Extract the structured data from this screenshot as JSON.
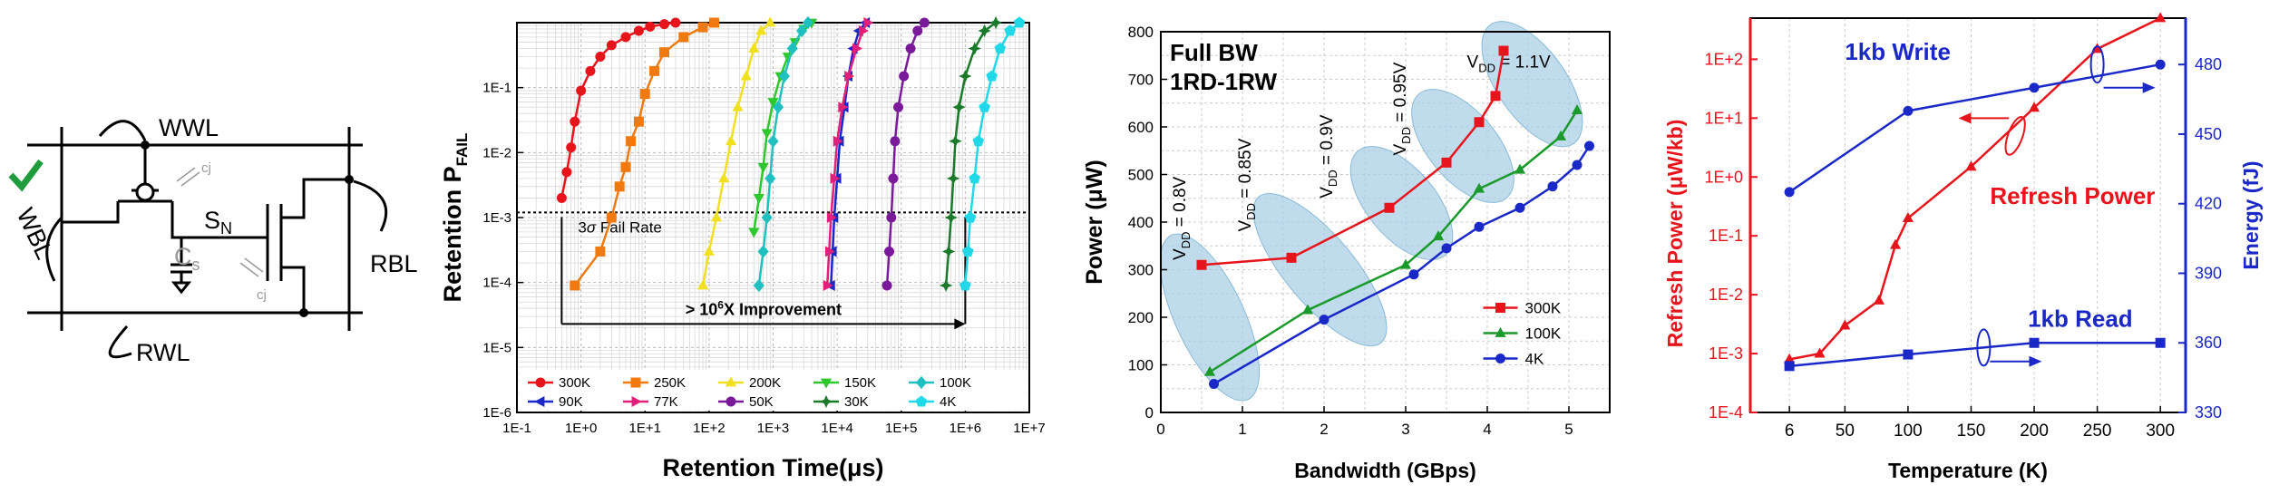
{
  "circuit": {
    "labels": {
      "wwl": "WWL",
      "wbl": "WBL",
      "rwl": "RWL",
      "rbl": "RBL",
      "sn": "S",
      "sn_sub": "N",
      "cs": "C",
      "cs_sub": "s",
      "cj1": "cj",
      "cj2": "cj"
    }
  },
  "colors": {
    "red": "#e8141c",
    "blue": "#1a28c8",
    "check": "#1f9c3c",
    "ellipse": "#a9cfe5"
  },
  "chart_data": [
    {
      "type": "line",
      "ylabel": "Retention P",
      "ylabel_sub": "FAIL",
      "xlabel": "Retention Time(μs)",
      "x_scale": "log",
      "y_scale": "log",
      "xlim": [
        0.1,
        10000000
      ],
      "ylim": [
        1e-06,
        1
      ],
      "x_ticks": [
        "1E-1",
        "1E+0",
        "1E+1",
        "1E+2",
        "1E+3",
        "1E+4",
        "1E+5",
        "1E+6",
        "1E+7"
      ],
      "y_ticks": [
        "1E-6",
        "1E-5",
        "1E-4",
        "1E-3",
        "1E-2",
        "1E-1"
      ],
      "threshold": {
        "y": 0.0012,
        "label_pre": "3",
        "label_sigma": "σ",
        "label_post": " Fail Rate"
      },
      "improvement": {
        "label_pre": "> 10",
        "label_sup": "6",
        "label_post": "X Improvement",
        "x_from": 0.5,
        "x_to": 1000000,
        "y": 2.3e-05
      },
      "series": [
        {
          "name": "300K",
          "color": "#e8141c",
          "marker": "circle",
          "x": [
            0.5,
            0.6,
            0.7,
            0.8,
            1.0,
            1.4,
            2,
            3,
            5,
            8,
            12,
            20,
            30
          ],
          "y": [
            0.002,
            0.005,
            0.012,
            0.03,
            0.09,
            0.18,
            0.3,
            0.45,
            0.6,
            0.75,
            0.87,
            0.95,
            1
          ]
        },
        {
          "name": "250K",
          "color": "#f07a10",
          "marker": "square",
          "x": [
            0.8,
            2,
            3,
            4,
            5,
            6,
            8,
            10,
            14,
            20,
            40,
            80,
            120
          ],
          "y": [
            9e-05,
            0.0003,
            0.001,
            0.003,
            0.006,
            0.015,
            0.03,
            0.08,
            0.18,
            0.35,
            0.6,
            0.85,
            1
          ]
        },
        {
          "name": "200K",
          "color": "#f0e020",
          "marker": "triangle-up",
          "x": [
            80,
            100,
            130,
            170,
            220,
            280,
            380,
            500,
            650,
            900
          ],
          "y": [
            9e-05,
            0.0003,
            0.001,
            0.004,
            0.015,
            0.05,
            0.15,
            0.4,
            0.75,
            1
          ]
        },
        {
          "name": "150K",
          "color": "#2ec82e",
          "marker": "triangle-down",
          "x": [
            500,
            600,
            700,
            800,
            1000,
            1300,
            1700,
            2200,
            3000,
            4000
          ],
          "y": [
            0.0006,
            0.002,
            0.006,
            0.02,
            0.06,
            0.15,
            0.3,
            0.5,
            0.8,
            1
          ]
        },
        {
          "name": "100K",
          "color": "#20c0c0",
          "marker": "diamond",
          "x": [
            600,
            700,
            800,
            900,
            1000,
            1200,
            1500,
            2000,
            2800,
            3500
          ],
          "y": [
            9e-05,
            0.0003,
            0.001,
            0.004,
            0.015,
            0.05,
            0.15,
            0.4,
            0.75,
            1
          ]
        },
        {
          "name": "90K",
          "color": "#1a28c8",
          "marker": "triangle-left",
          "x": [
            8000,
            8500,
            9000,
            10000,
            11000,
            13000,
            15000,
            18000,
            22000,
            28000
          ],
          "y": [
            9e-05,
            0.0003,
            0.001,
            0.004,
            0.015,
            0.05,
            0.15,
            0.4,
            0.75,
            1
          ]
        },
        {
          "name": "77K",
          "color": "#e0207a",
          "marker": "triangle-right",
          "x": [
            7000,
            7500,
            8000,
            9000,
            10000,
            12000,
            15000,
            20000,
            25000,
            30000
          ],
          "y": [
            9e-05,
            0.0003,
            0.001,
            0.004,
            0.015,
            0.05,
            0.15,
            0.4,
            0.75,
            1
          ]
        },
        {
          "name": "50K",
          "color": "#7a1a9a",
          "marker": "hexagon",
          "x": [
            60000,
            65000,
            70000,
            75000,
            80000,
            90000,
            110000,
            140000,
            180000,
            230000
          ],
          "y": [
            9e-05,
            0.0003,
            0.001,
            0.004,
            0.015,
            0.05,
            0.15,
            0.4,
            0.75,
            1
          ]
        },
        {
          "name": "30K",
          "color": "#1a7a2a",
          "marker": "star",
          "x": [
            500000,
            550000,
            600000,
            650000,
            700000,
            800000,
            1000000,
            1400000,
            2000000,
            3000000
          ],
          "y": [
            9e-05,
            0.0003,
            0.001,
            0.004,
            0.015,
            0.05,
            0.15,
            0.4,
            0.75,
            1
          ]
        },
        {
          "name": "4K",
          "color": "#20d8e8",
          "marker": "pentagon",
          "x": [
            1000000,
            1100000,
            1200000,
            1400000,
            1600000,
            2000000,
            2600000,
            3500000,
            5000000,
            7000000
          ],
          "y": [
            9e-05,
            0.0003,
            0.001,
            0.004,
            0.015,
            0.05,
            0.15,
            0.4,
            0.75,
            1
          ]
        }
      ]
    },
    {
      "type": "line",
      "title_lines": [
        "Full BW",
        "1RD-1RW"
      ],
      "xlabel": "Bandwidth (GBps)",
      "ylabel": "Power (μW)",
      "xlim": [
        0,
        5.5
      ],
      "ylim": [
        0,
        800
      ],
      "x_ticks": [
        "0",
        "1",
        "2",
        "3",
        "4",
        "5"
      ],
      "y_ticks": [
        "0",
        "100",
        "200",
        "300",
        "400",
        "500",
        "600",
        "700",
        "800"
      ],
      "vdd_labels": [
        {
          "main": "V",
          "sub": "DD",
          "val": " = 0.8V"
        },
        {
          "main": "V",
          "sub": "DD",
          "val": " = 0.85V"
        },
        {
          "main": "V",
          "sub": "DD",
          "val": " = 0.9V"
        },
        {
          "main": "V",
          "sub": "DD",
          "val": " = 0.95V"
        },
        {
          "main": "V",
          "sub": "DD",
          "val": " = 1.1V"
        }
      ],
      "series": [
        {
          "name": "300K",
          "color": "#e8141c",
          "marker": "square",
          "x": [
            0.5,
            1.6,
            2.8,
            3.5,
            3.9,
            4.1,
            4.2
          ],
          "y": [
            310,
            325,
            430,
            525,
            610,
            665,
            760
          ]
        },
        {
          "name": "100K",
          "color": "#1a9a2a",
          "marker": "triangle-up",
          "x": [
            0.6,
            1.8,
            3.0,
            3.4,
            3.9,
            4.4,
            4.9,
            5.1
          ],
          "y": [
            85,
            215,
            310,
            370,
            470,
            510,
            580,
            635
          ]
        },
        {
          "name": "4K",
          "color": "#1a28c8",
          "marker": "circle",
          "x": [
            0.65,
            2.0,
            3.1,
            3.5,
            3.9,
            4.4,
            4.8,
            5.1,
            5.25
          ],
          "y": [
            60,
            195,
            290,
            345,
            390,
            430,
            475,
            520,
            560
          ]
        }
      ]
    },
    {
      "type": "line",
      "xlabel": "Temperature (K)",
      "ylabel_left": "Refresh Power (μW/kb)",
      "ylabel_right": "Energy (fJ)",
      "x_ticks": [
        "6",
        "50",
        "100",
        "150",
        "200",
        "250",
        "300"
      ],
      "y_ticks_left": [
        "1E-4",
        "1E-3",
        "1E-2",
        "1E-1",
        "1E+0",
        "1E+1",
        "1E+2"
      ],
      "y_ticks_right": [
        "330",
        "360",
        "390",
        "420",
        "450",
        "480"
      ],
      "y_scale_left": "log",
      "ylim_left": [
        0.0001,
        500
      ],
      "ylim_right": [
        330,
        500
      ],
      "annotations": {
        "write": "1kb Write",
        "read": "1kb Read",
        "refresh": "Refresh Power"
      },
      "series": [
        {
          "name": "Refresh Power",
          "axis": "left",
          "color": "#e8141c",
          "marker": "triangle-up",
          "x": [
            6,
            30,
            50,
            77,
            90,
            100,
            150,
            200,
            250,
            300
          ],
          "y": [
            0.0008,
            0.001,
            0.003,
            0.008,
            0.07,
            0.2,
            1.5,
            15,
            150,
            500
          ]
        },
        {
          "name": "1kb Write",
          "axis": "right",
          "color": "#1a28c8",
          "marker": "circle",
          "x": [
            6,
            100,
            200,
            300
          ],
          "y": [
            425,
            460,
            470,
            480
          ]
        },
        {
          "name": "1kb Read",
          "axis": "right",
          "color": "#1a28c8",
          "marker": "square",
          "x": [
            6,
            100,
            200,
            300
          ],
          "y": [
            350,
            355,
            360,
            360
          ]
        }
      ]
    }
  ]
}
